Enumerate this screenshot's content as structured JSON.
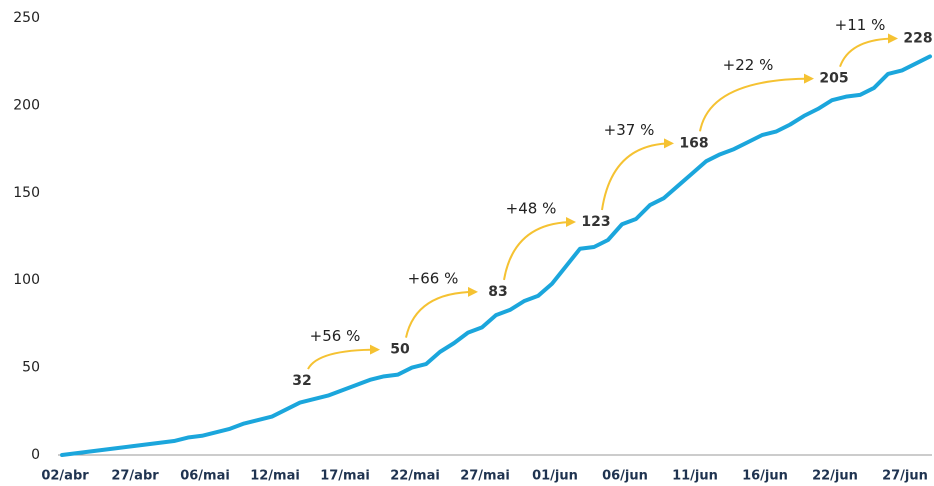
{
  "chart_data": {
    "type": "line",
    "categories": [
      "02/abr",
      null,
      null,
      null,
      null,
      "27/abr",
      null,
      null,
      null,
      null,
      "06/mai",
      null,
      null,
      null,
      null,
      "12/mai",
      null,
      null,
      null,
      null,
      "17/mai",
      null,
      null,
      null,
      null,
      "22/mai",
      null,
      null,
      null,
      null,
      "27/mai",
      null,
      null,
      null,
      null,
      "01/jun",
      null,
      null,
      null,
      null,
      "06/jun",
      null,
      null,
      null,
      null,
      "11/jun",
      null,
      null,
      null,
      null,
      "16/jun",
      null,
      null,
      null,
      null,
      "22/jun",
      null,
      null,
      null,
      null,
      "27/jun",
      null,
      null
    ],
    "series": [
      {
        "color": "#1ba6dc",
        "values": [
          0,
          1,
          2,
          3,
          4,
          5,
          6,
          7,
          8,
          10,
          11,
          13,
          15,
          18,
          20,
          22,
          26,
          30,
          32,
          34,
          37,
          40,
          43,
          45,
          46,
          50,
          52,
          59,
          64,
          70,
          73,
          80,
          83,
          88,
          91,
          98,
          108,
          118,
          119,
          123,
          132,
          135,
          143,
          147,
          154,
          161,
          168,
          172,
          175,
          179,
          183,
          185,
          189,
          194,
          198,
          203,
          205,
          206,
          210,
          218,
          220,
          224,
          228
        ],
        "value_labels": [
          null,
          null,
          null,
          null,
          null,
          null,
          null,
          null,
          null,
          null,
          null,
          null,
          null,
          null,
          null,
          null,
          null,
          null,
          "32",
          null,
          null,
          null,
          null,
          null,
          null,
          "50",
          null,
          null,
          null,
          null,
          null,
          null,
          "83",
          null,
          null,
          null,
          null,
          null,
          null,
          "123",
          null,
          null,
          null,
          null,
          null,
          null,
          "168",
          null,
          null,
          null,
          null,
          null,
          null,
          null,
          null,
          null,
          "205",
          null,
          null,
          null,
          null,
          null,
          "228"
        ]
      }
    ],
    "annotations": [
      "+56 %",
      "+66 %",
      "+48 %",
      "+37 %",
      "+22 %",
      "+11 %"
    ],
    "annotation_color": "#f5c232",
    "ylim": [
      0,
      250
    ],
    "yticks": [
      0,
      50,
      100,
      150,
      200,
      250
    ],
    "grid": false
  }
}
